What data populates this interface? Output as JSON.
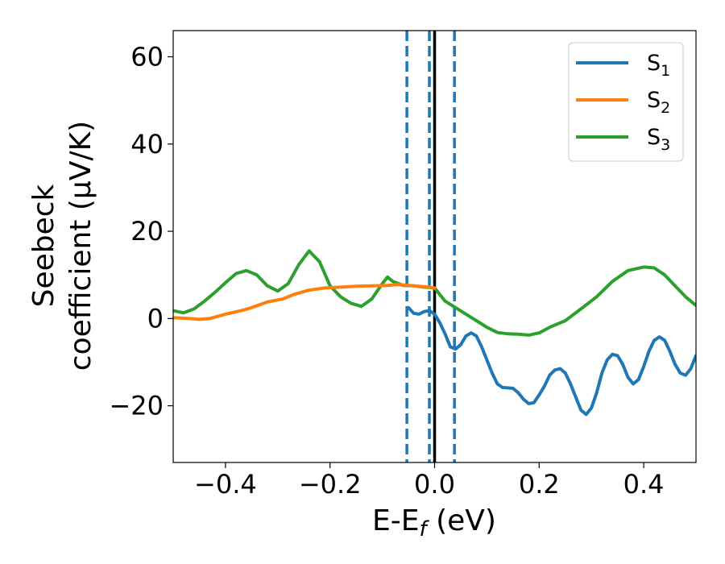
{
  "chart_data": {
    "type": "line",
    "xlabel": "E-E",
    "xlabel_sub": "f",
    "xlabel_unit": " (eV)",
    "ylabel_line1": "Seebeck",
    "ylabel_line2": "coefficient  (μV/K)",
    "xlim": [
      -0.5,
      0.5
    ],
    "ylim": [
      -33,
      66
    ],
    "xticks": [
      -0.4,
      -0.2,
      0.0,
      0.2,
      0.4
    ],
    "xtick_labels": [
      "−0.4",
      "−0.2",
      "0.0",
      "0.2",
      "0.4"
    ],
    "yticks": [
      -20,
      0,
      20,
      40,
      60
    ],
    "ytick_labels": [
      "−20",
      "0",
      "20",
      "40",
      "60"
    ],
    "grid": false,
    "legend_position": "top-right",
    "vlines": [
      {
        "x": 0.0,
        "style": "solid",
        "color": "#000000"
      },
      {
        "x": -0.053,
        "style": "dashed",
        "color": "#1f77b4"
      },
      {
        "x": -0.01,
        "style": "dashed",
        "color": "#1f77b4"
      },
      {
        "x": 0.038,
        "style": "dashed",
        "color": "#1f77b4"
      }
    ],
    "series": [
      {
        "name": "S",
        "name_sub": "1",
        "color": "#1f77b4",
        "points": [
          [
            -0.05,
            2.5
          ],
          [
            -0.04,
            1.2
          ],
          [
            -0.03,
            1.0
          ],
          [
            -0.02,
            1.6
          ],
          [
            -0.01,
            1.8
          ],
          [
            0.0,
            1.0
          ],
          [
            0.01,
            -1.0
          ],
          [
            0.02,
            -3.5
          ],
          [
            0.03,
            -6.5
          ],
          [
            0.04,
            -7.0
          ],
          [
            0.05,
            -6.0
          ],
          [
            0.06,
            -4.0
          ],
          [
            0.07,
            -3.3
          ],
          [
            0.08,
            -4.0
          ],
          [
            0.09,
            -6.5
          ],
          [
            0.1,
            -9.5
          ],
          [
            0.11,
            -12.5
          ],
          [
            0.12,
            -15.0
          ],
          [
            0.13,
            -15.8
          ],
          [
            0.15,
            -16.0
          ],
          [
            0.16,
            -17.0
          ],
          [
            0.17,
            -18.5
          ],
          [
            0.18,
            -19.5
          ],
          [
            0.19,
            -19.3
          ],
          [
            0.2,
            -17.5
          ],
          [
            0.21,
            -15.5
          ],
          [
            0.22,
            -13.0
          ],
          [
            0.23,
            -11.8
          ],
          [
            0.24,
            -11.5
          ],
          [
            0.25,
            -12.5
          ],
          [
            0.26,
            -15.0
          ],
          [
            0.27,
            -18.0
          ],
          [
            0.28,
            -21.0
          ],
          [
            0.29,
            -22.0
          ],
          [
            0.3,
            -20.5
          ],
          [
            0.31,
            -17.0
          ],
          [
            0.32,
            -12.5
          ],
          [
            0.33,
            -9.5
          ],
          [
            0.34,
            -8.2
          ],
          [
            0.35,
            -8.5
          ],
          [
            0.36,
            -10.5
          ],
          [
            0.37,
            -13.5
          ],
          [
            0.38,
            -15.0
          ],
          [
            0.39,
            -14.0
          ],
          [
            0.4,
            -11.0
          ],
          [
            0.41,
            -7.5
          ],
          [
            0.42,
            -5.0
          ],
          [
            0.43,
            -4.2
          ],
          [
            0.44,
            -5.0
          ],
          [
            0.45,
            -7.5
          ],
          [
            0.46,
            -10.5
          ],
          [
            0.47,
            -12.5
          ],
          [
            0.48,
            -13.0
          ],
          [
            0.49,
            -11.5
          ],
          [
            0.5,
            -8.5
          ]
        ]
      },
      {
        "name": "S",
        "name_sub": "2",
        "color": "#ff7f0e",
        "points": [
          [
            -0.5,
            0.2
          ],
          [
            -0.47,
            0.0
          ],
          [
            -0.45,
            -0.2
          ],
          [
            -0.43,
            0.0
          ],
          [
            -0.4,
            1.0
          ],
          [
            -0.37,
            1.8
          ],
          [
            -0.35,
            2.5
          ],
          [
            -0.32,
            3.8
          ],
          [
            -0.29,
            4.5
          ],
          [
            -0.27,
            5.5
          ],
          [
            -0.24,
            6.5
          ],
          [
            -0.21,
            7.0
          ],
          [
            -0.18,
            7.2
          ],
          [
            -0.15,
            7.4
          ],
          [
            -0.12,
            7.5
          ],
          [
            -0.09,
            7.6
          ],
          [
            -0.07,
            7.8
          ],
          [
            -0.05,
            7.6
          ],
          [
            -0.03,
            7.4
          ],
          [
            -0.01,
            7.2
          ],
          [
            0.0,
            7.0
          ]
        ]
      },
      {
        "name": "S",
        "name_sub": "3",
        "color": "#2ca02c",
        "points": [
          [
            -0.5,
            1.8
          ],
          [
            -0.48,
            1.3
          ],
          [
            -0.46,
            2.2
          ],
          [
            -0.44,
            4.0
          ],
          [
            -0.42,
            6.0
          ],
          [
            -0.4,
            8.2
          ],
          [
            -0.38,
            10.3
          ],
          [
            -0.36,
            11.0
          ],
          [
            -0.34,
            10.0
          ],
          [
            -0.32,
            7.5
          ],
          [
            -0.3,
            6.3
          ],
          [
            -0.28,
            8.0
          ],
          [
            -0.26,
            12.3
          ],
          [
            -0.24,
            15.5
          ],
          [
            -0.22,
            13.0
          ],
          [
            -0.2,
            7.5
          ],
          [
            -0.18,
            5.0
          ],
          [
            -0.16,
            3.5
          ],
          [
            -0.14,
            2.8
          ],
          [
            -0.12,
            4.5
          ],
          [
            -0.1,
            8.0
          ],
          [
            -0.09,
            9.5
          ],
          [
            -0.08,
            8.5
          ],
          [
            -0.06,
            7.6
          ],
          [
            -0.04,
            7.5
          ],
          [
            -0.02,
            7.2
          ],
          [
            0.0,
            7.0
          ],
          [
            0.01,
            5.5
          ],
          [
            0.02,
            4.0
          ],
          [
            0.04,
            2.5
          ],
          [
            0.06,
            1.0
          ],
          [
            0.08,
            -0.5
          ],
          [
            0.1,
            -2.0
          ],
          [
            0.12,
            -3.2
          ],
          [
            0.14,
            -3.5
          ],
          [
            0.16,
            -3.6
          ],
          [
            0.18,
            -3.8
          ],
          [
            0.2,
            -3.3
          ],
          [
            0.22,
            -2.0
          ],
          [
            0.25,
            -0.5
          ],
          [
            0.28,
            2.2
          ],
          [
            0.31,
            5.0
          ],
          [
            0.34,
            8.5
          ],
          [
            0.37,
            11.0
          ],
          [
            0.4,
            11.8
          ],
          [
            0.42,
            11.6
          ],
          [
            0.44,
            10.0
          ],
          [
            0.46,
            7.5
          ],
          [
            0.48,
            5.0
          ],
          [
            0.5,
            3.0
          ]
        ]
      }
    ]
  }
}
